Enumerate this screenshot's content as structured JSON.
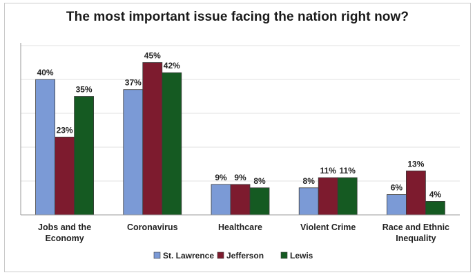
{
  "chart_data": {
    "type": "bar",
    "title": "The most important issue facing the nation right now?",
    "categories": [
      [
        "Jobs and the",
        "Economy"
      ],
      [
        "Coronavirus"
      ],
      [
        "Healthcare"
      ],
      [
        "Violent Crime"
      ],
      [
        "Race and Ethnic",
        "Inequality"
      ]
    ],
    "series": [
      {
        "name": "St. Lawrence",
        "color": "#7b9ad6",
        "values": [
          40,
          37,
          9,
          8,
          6
        ]
      },
      {
        "name": "Jefferson",
        "color": "#7d1b2e",
        "values": [
          23,
          45,
          9,
          11,
          13
        ]
      },
      {
        "name": "Lewis",
        "color": "#155a22",
        "values": [
          35,
          42,
          8,
          11,
          4
        ]
      }
    ],
    "value_suffix": "%",
    "ylim": [
      0,
      50
    ],
    "grid": true,
    "legend_position": "bottom"
  }
}
